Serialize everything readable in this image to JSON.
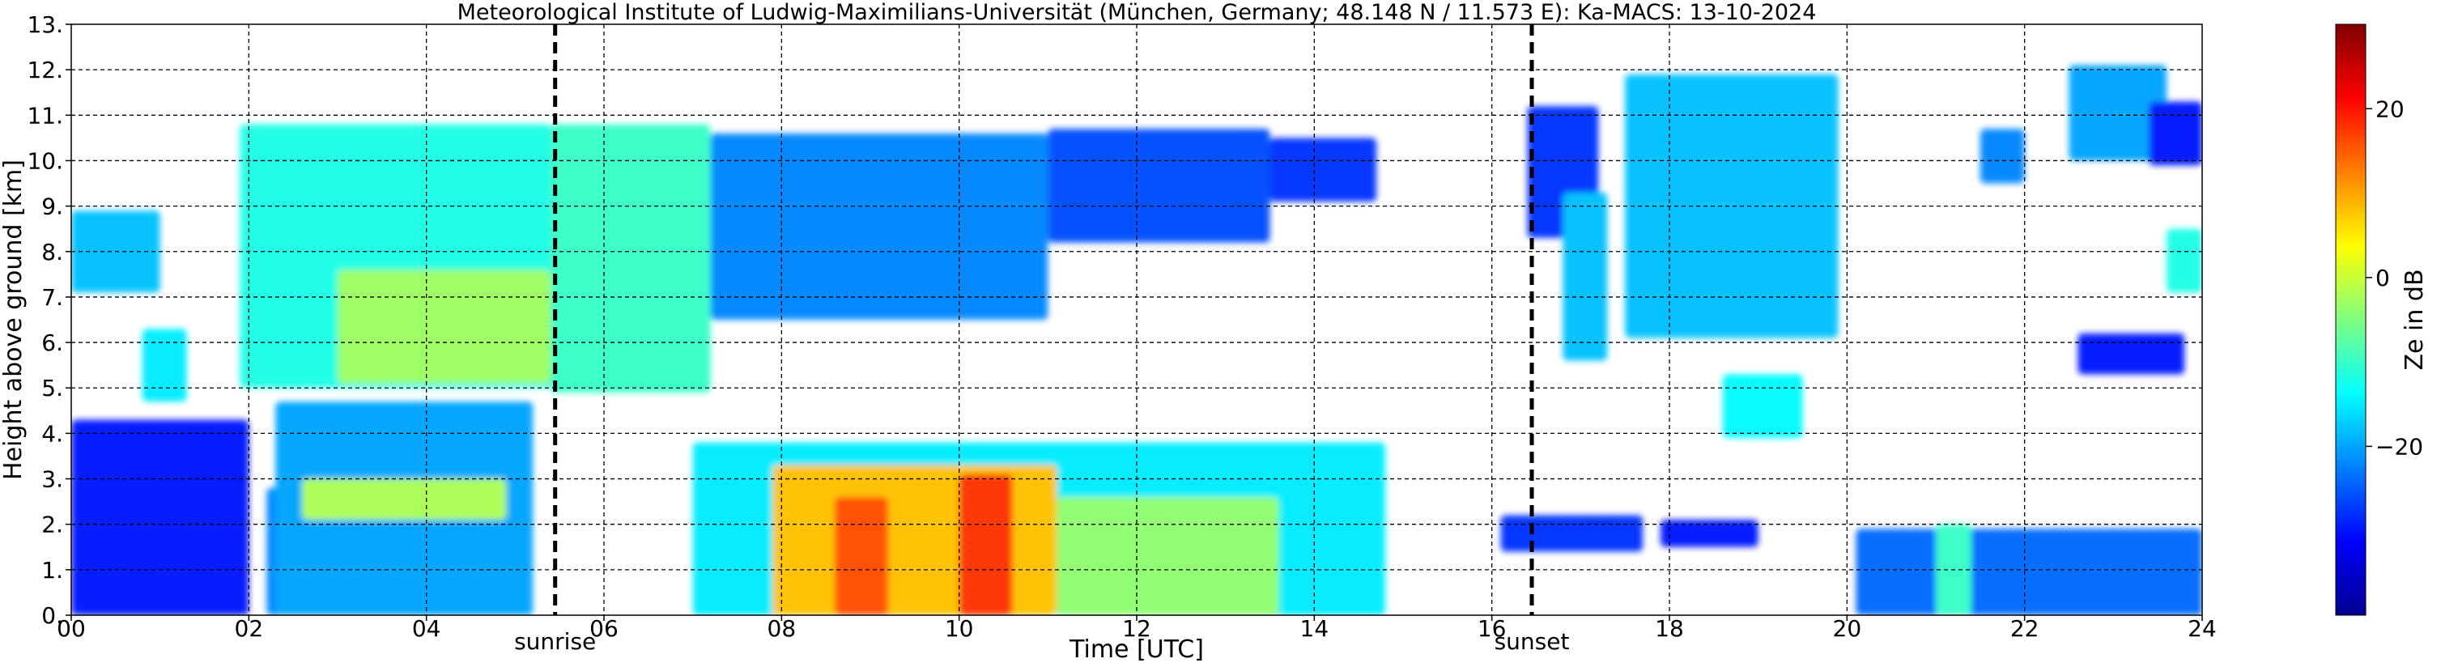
{
  "chart_data": {
    "type": "heatmap",
    "title": "Meteorological Institute of Ludwig-Maximilians-Universität (München, Germany; 48.148 N / 11.573 E):    Ka-MACS: 13-10-2024",
    "xlabel": "Time [UTC]",
    "ylabel": "Height above ground [km]",
    "xlim": [
      0,
      24
    ],
    "ylim": [
      0,
      13
    ],
    "x_ticks": [
      0,
      2,
      4,
      6,
      8,
      10,
      12,
      14,
      16,
      18,
      20,
      22,
      24
    ],
    "x_tick_labels": [
      "00",
      "02",
      "04",
      "06",
      "08",
      "10",
      "12",
      "14",
      "16",
      "18",
      "20",
      "22",
      "24"
    ],
    "y_ticks": [
      0,
      1,
      2,
      3,
      4,
      5,
      6,
      7,
      8,
      9,
      10,
      11,
      12,
      13
    ],
    "y_tick_labels": [
      "0.",
      "1.",
      "2.",
      "3.",
      "4.",
      "5.",
      "6.",
      "7.",
      "8.",
      "9.",
      "10.",
      "11.",
      "12.",
      "13."
    ],
    "grid": true,
    "colorbar": {
      "label": "Ze in dB",
      "range": [
        -40,
        30
      ],
      "ticks": [
        20,
        0,
        -20
      ],
      "tick_labels": [
        "20",
        "0",
        "−20"
      ],
      "colormap": [
        "#00008f",
        "#0000ff",
        "#0080ff",
        "#00ffff",
        "#80ff80",
        "#ffff00",
        "#ff8000",
        "#ff0000",
        "#800000"
      ]
    },
    "annotations": [
      {
        "text": "sunrise",
        "x": 5.45
      },
      {
        "text": "sunset",
        "x": 16.45
      }
    ],
    "echo_regions": [
      {
        "t": [
          0.0,
          1.0
        ],
        "z": [
          7.1,
          8.9
        ],
        "ze": -18
      },
      {
        "t": [
          0.8,
          1.3
        ],
        "z": [
          4.7,
          6.3
        ],
        "ze": -15
      },
      {
        "t": [
          0.0,
          2.0
        ],
        "z": [
          0.0,
          4.3
        ],
        "ze": -30
      },
      {
        "t": [
          2.2,
          3.2
        ],
        "z": [
          0.0,
          2.8
        ],
        "ze": -22
      },
      {
        "t": [
          1.9,
          5.4
        ],
        "z": [
          5.0,
          10.8
        ],
        "ze": -12
      },
      {
        "t": [
          3.0,
          5.4
        ],
        "z": [
          5.1,
          7.6
        ],
        "ze": -3
      },
      {
        "t": [
          2.3,
          5.2
        ],
        "z": [
          0.0,
          4.7
        ],
        "ze": -20
      },
      {
        "t": [
          2.6,
          4.9
        ],
        "z": [
          2.1,
          3.0
        ],
        "ze": -2
      },
      {
        "t": [
          5.4,
          7.2
        ],
        "z": [
          4.9,
          10.8
        ],
        "ze": -10
      },
      {
        "t": [
          7.2,
          11.0
        ],
        "z": [
          6.5,
          10.6
        ],
        "ze": -22
      },
      {
        "t": [
          11.0,
          13.5
        ],
        "z": [
          8.2,
          10.7
        ],
        "ze": -26
      },
      {
        "t": [
          13.5,
          14.7
        ],
        "z": [
          9.1,
          10.5
        ],
        "ze": -28
      },
      {
        "t": [
          7.0,
          14.8
        ],
        "z": [
          0.0,
          3.8
        ],
        "ze": -15
      },
      {
        "t": [
          7.9,
          11.1
        ],
        "z": [
          0.0,
          3.3
        ],
        "ze": 8
      },
      {
        "t": [
          8.6,
          9.2
        ],
        "z": [
          0.0,
          2.6
        ],
        "ze": 16
      },
      {
        "t": [
          10.0,
          10.6
        ],
        "z": [
          0.0,
          3.1
        ],
        "ze": 18
      },
      {
        "t": [
          11.1,
          13.6
        ],
        "z": [
          0.0,
          2.6
        ],
        "ze": -4
      },
      {
        "t": [
          16.4,
          17.2
        ],
        "z": [
          8.3,
          11.2
        ],
        "ze": -28
      },
      {
        "t": [
          16.8,
          17.3
        ],
        "z": [
          5.6,
          9.3
        ],
        "ze": -18
      },
      {
        "t": [
          17.5,
          19.9
        ],
        "z": [
          6.1,
          11.9
        ],
        "ze": -18
      },
      {
        "t": [
          18.6,
          19.5
        ],
        "z": [
          3.9,
          5.3
        ],
        "ze": -14
      },
      {
        "t": [
          16.1,
          17.7
        ],
        "z": [
          1.4,
          2.2
        ],
        "ze": -28
      },
      {
        "t": [
          17.9,
          19.0
        ],
        "z": [
          1.5,
          2.1
        ],
        "ze": -30
      },
      {
        "t": [
          20.1,
          24.0
        ],
        "z": [
          0.0,
          1.9
        ],
        "ze": -24
      },
      {
        "t": [
          21.0,
          21.4
        ],
        "z": [
          0.0,
          2.0
        ],
        "ze": -10
      },
      {
        "t": [
          21.5,
          22.0
        ],
        "z": [
          9.5,
          10.7
        ],
        "ze": -22
      },
      {
        "t": [
          22.5,
          23.6
        ],
        "z": [
          10.0,
          12.1
        ],
        "ze": -20
      },
      {
        "t": [
          23.4,
          24.0
        ],
        "z": [
          9.9,
          11.3
        ],
        "ze": -30
      },
      {
        "t": [
          23.6,
          24.0
        ],
        "z": [
          7.1,
          8.5
        ],
        "ze": -12
      },
      {
        "t": [
          22.6,
          23.8
        ],
        "z": [
          5.3,
          6.2
        ],
        "ze": -30
      }
    ]
  }
}
